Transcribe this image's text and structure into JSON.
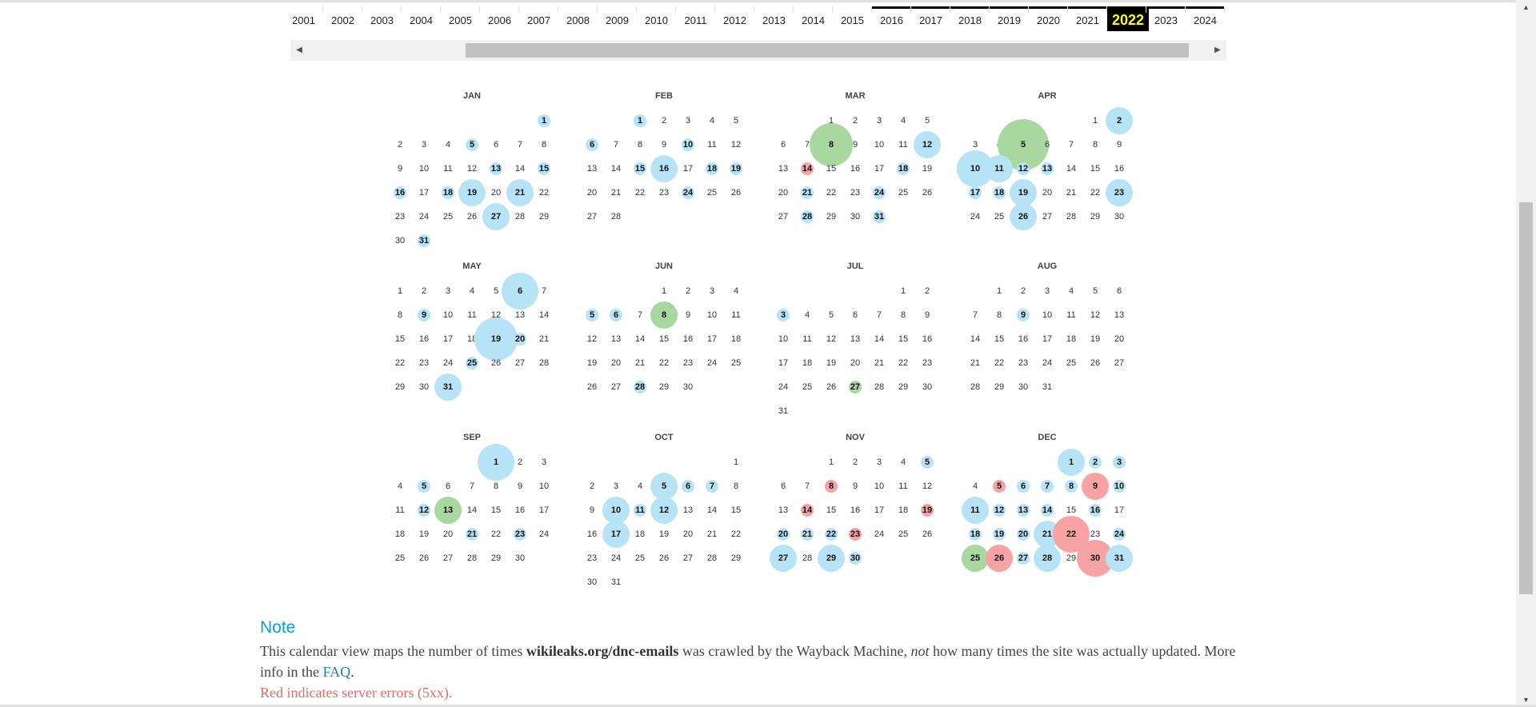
{
  "years": {
    "labels": [
      "2001",
      "2002",
      "2003",
      "2004",
      "2005",
      "2006",
      "2007",
      "2008",
      "2009",
      "2010",
      "2011",
      "2012",
      "2013",
      "2014",
      "2015",
      "2016",
      "2017",
      "2018",
      "2019",
      "2020",
      "2021",
      "2022",
      "2023",
      "2024"
    ],
    "selected": "2022",
    "years_with_captures": [
      "2016",
      "2017",
      "2018",
      "2019",
      "2020",
      "2021",
      "2022",
      "2023",
      "2024"
    ]
  },
  "scrollbar": {
    "left_icon": "arrow-left-icon",
    "right_icon": "arrow-right-icon",
    "left_glyph": "◀",
    "right_glyph": "▶"
  },
  "colors": {
    "capture": "#b6e3f6",
    "redirect": "#a9d7a0",
    "error": "#f7a3a3",
    "accent": "#0d9cdb",
    "selected_year_bg": "#000000",
    "selected_year_fg": "#ffff00"
  },
  "calendar": {
    "year": 2022,
    "months": [
      {
        "name": "JAN",
        "captures": {
          "1": 1,
          "5": 1,
          "13": 1,
          "15": 1,
          "16": 1,
          "18": 1,
          "19": 2,
          "21": 2,
          "27": 2,
          "31": 1
        }
      },
      {
        "name": "FEB",
        "captures": {
          "1": 1,
          "6": 1,
          "10": 1,
          "15": 1,
          "16": 2,
          "18": 1,
          "19": 1,
          "24": 1
        }
      },
      {
        "name": "MAR",
        "captures": {
          "8": 4,
          "12": 2,
          "14": 1,
          "18": 1,
          "21": 1,
          "24": 1,
          "28": 1,
          "31": 1
        },
        "redirects": [
          8
        ],
        "errors": [
          14
        ]
      },
      {
        "name": "APR",
        "captures": {
          "2": 2,
          "5": 5,
          "10": 3,
          "11": 2,
          "12": 1,
          "13": 1,
          "17": 1,
          "18": 1,
          "19": 2,
          "23": 2,
          "26": 2
        },
        "redirects": [
          5
        ]
      },
      {
        "name": "MAY",
        "captures": {
          "6": 3,
          "9": 1,
          "19": 4,
          "20": 1,
          "25": 1,
          "31": 2
        }
      },
      {
        "name": "JUN",
        "captures": {
          "5": 1,
          "6": 1,
          "8": 2,
          "28": 1
        },
        "redirects": [
          8
        ]
      },
      {
        "name": "JUL",
        "captures": {
          "3": 1,
          "27": 1
        },
        "redirects": [
          27
        ]
      },
      {
        "name": "AUG",
        "captures": {
          "9": 1
        }
      },
      {
        "name": "SEP",
        "captures": {
          "1": 3,
          "5": 1,
          "12": 1,
          "13": 2,
          "21": 1,
          "23": 1
        },
        "redirects": [
          13
        ]
      },
      {
        "name": "OCT",
        "captures": {
          "5": 2,
          "6": 1,
          "7": 1,
          "10": 2,
          "11": 1,
          "12": 2,
          "17": 2
        }
      },
      {
        "name": "NOV",
        "captures": {
          "5": 1,
          "8": 1,
          "14": 1,
          "19": 1,
          "20": 1,
          "21": 1,
          "22": 1,
          "23": 1,
          "27": 2,
          "29": 2,
          "30": 1
        },
        "errors": [
          8,
          14,
          19,
          23
        ]
      },
      {
        "name": "DEC",
        "captures": {
          "1": 2,
          "2": 1,
          "3": 1,
          "5": 1,
          "6": 1,
          "7": 1,
          "8": 1,
          "9": 2,
          "10": 1,
          "11": 2,
          "12": 1,
          "13": 1,
          "14": 1,
          "16": 1,
          "18": 1,
          "19": 1,
          "20": 1,
          "21": 2,
          "22": 3,
          "24": 1,
          "25": 2,
          "26": 2,
          "27": 1,
          "28": 2,
          "30": 3,
          "31": 2
        },
        "redirects": [
          25
        ],
        "errors": [
          5,
          9,
          22,
          26,
          30
        ]
      }
    ]
  },
  "note": {
    "title": "Note",
    "text1": "This calendar view maps the number of times ",
    "bold": "wikileaks.org/dnc-emails",
    "text2": " was crawled by the Wayback Machine, ",
    "italic": "not",
    "text3": " how many times the site was actually updated. More info in the ",
    "link": "FAQ",
    "text4": ".",
    "error_line": "Red indicates server errors (5xx)."
  },
  "vertical_scrollbar": {
    "up_glyph": "▲",
    "down_glyph": "▼"
  }
}
